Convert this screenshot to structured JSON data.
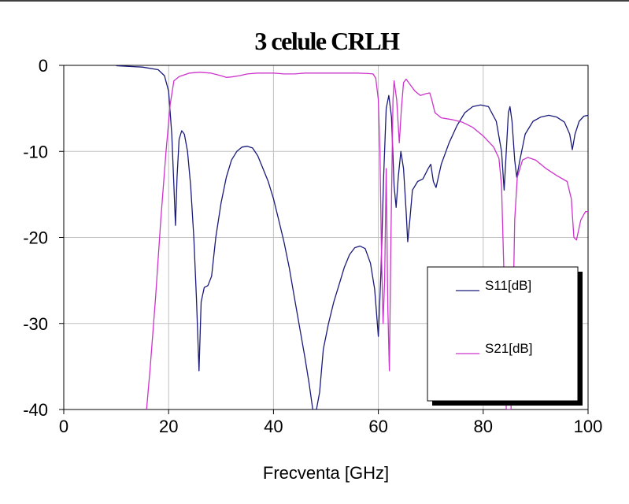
{
  "chart_data": {
    "type": "line",
    "title": "3 celule CRLH",
    "xlabel": "Frecventa [GHz]",
    "ylabel": "",
    "xlim": [
      0,
      100
    ],
    "ylim": [
      -40,
      0
    ],
    "xticks": [
      0,
      20,
      40,
      60,
      80,
      100
    ],
    "yticks": [
      0,
      -10,
      -20,
      -30,
      -40
    ],
    "grid": true,
    "legend_position": "bottom-right",
    "series": [
      {
        "name": "S11[dB]",
        "color": "#1a1a7a",
        "points": [
          [
            10,
            -0.05
          ],
          [
            15,
            -0.2
          ],
          [
            18,
            -0.5
          ],
          [
            19.2,
            -1.2
          ],
          [
            20,
            -3
          ],
          [
            20.6,
            -8
          ],
          [
            21,
            -14
          ],
          [
            21.3,
            -18.6
          ],
          [
            21.6,
            -13
          ],
          [
            22,
            -8.6
          ],
          [
            22.5,
            -7.6
          ],
          [
            23,
            -8
          ],
          [
            23.6,
            -10
          ],
          [
            24.2,
            -14
          ],
          [
            24.8,
            -20
          ],
          [
            25.3,
            -27
          ],
          [
            25.8,
            -35.5
          ],
          [
            26.2,
            -27.5
          ],
          [
            26.8,
            -25.8
          ],
          [
            27.5,
            -25.6
          ],
          [
            28.2,
            -24.5
          ],
          [
            29,
            -20
          ],
          [
            30,
            -16
          ],
          [
            31,
            -13
          ],
          [
            32,
            -11
          ],
          [
            33,
            -10
          ],
          [
            34,
            -9.5
          ],
          [
            35,
            -9.4
          ],
          [
            36,
            -9.6
          ],
          [
            37,
            -10.5
          ],
          [
            38,
            -12
          ],
          [
            39,
            -13.5
          ],
          [
            40,
            -15.5
          ],
          [
            41,
            -18
          ],
          [
            42,
            -20.5
          ],
          [
            43,
            -23.5
          ],
          [
            44,
            -27
          ],
          [
            45,
            -30.5
          ],
          [
            46,
            -34
          ],
          [
            46.8,
            -37
          ],
          [
            47.5,
            -40
          ],
          [
            48.2,
            -40
          ],
          [
            48.8,
            -38
          ],
          [
            49.5,
            -33
          ],
          [
            50.5,
            -30
          ],
          [
            51.5,
            -27.5
          ],
          [
            52.5,
            -25.5
          ],
          [
            53.5,
            -23.5
          ],
          [
            54.5,
            -22
          ],
          [
            55.5,
            -21.2
          ],
          [
            56.5,
            -21
          ],
          [
            57.5,
            -21.3
          ],
          [
            58.5,
            -23
          ],
          [
            59.3,
            -26
          ],
          [
            60,
            -31.5
          ],
          [
            60.5,
            -24
          ],
          [
            61,
            -13
          ],
          [
            61.5,
            -5
          ],
          [
            62,
            -3.5
          ],
          [
            62.5,
            -6
          ],
          [
            63,
            -14
          ],
          [
            63.4,
            -16.5
          ],
          [
            63.8,
            -13
          ],
          [
            64.3,
            -10
          ],
          [
            64.8,
            -12
          ],
          [
            65.3,
            -17
          ],
          [
            65.6,
            -20.5
          ],
          [
            66,
            -18
          ],
          [
            66.5,
            -14.5
          ],
          [
            67.5,
            -13.5
          ],
          [
            68.5,
            -13.2
          ],
          [
            69.5,
            -12
          ],
          [
            70,
            -11.5
          ],
          [
            70.5,
            -13.5
          ],
          [
            71,
            -14.2
          ],
          [
            72,
            -11.5
          ],
          [
            73.5,
            -9
          ],
          [
            75,
            -7
          ],
          [
            76.5,
            -5.5
          ],
          [
            78,
            -4.8
          ],
          [
            79.5,
            -4.6
          ],
          [
            81,
            -4.8
          ],
          [
            82.5,
            -6.5
          ],
          [
            83.5,
            -10
          ],
          [
            84,
            -14.5
          ],
          [
            84.4,
            -10
          ],
          [
            84.8,
            -5.5
          ],
          [
            85.1,
            -4.8
          ],
          [
            85.5,
            -6.5
          ],
          [
            86,
            -11
          ],
          [
            86.4,
            -13
          ],
          [
            87,
            -11
          ],
          [
            88,
            -8
          ],
          [
            89.5,
            -6.5
          ],
          [
            91,
            -6
          ],
          [
            92.5,
            -5.8
          ],
          [
            94,
            -6
          ],
          [
            95.5,
            -6.6
          ],
          [
            96.5,
            -8
          ],
          [
            97,
            -9.8
          ],
          [
            97.5,
            -8
          ],
          [
            98.3,
            -6.5
          ],
          [
            99.2,
            -5.9
          ],
          [
            100,
            -5.8
          ]
        ]
      },
      {
        "name": "S21[dB]",
        "color": "#cc33cc",
        "points": [
          [
            15.8,
            -40
          ],
          [
            16.5,
            -35
          ],
          [
            17.5,
            -27
          ],
          [
            18.5,
            -18
          ],
          [
            19.5,
            -10
          ],
          [
            20.3,
            -4.5
          ],
          [
            21,
            -1.8
          ],
          [
            22,
            -1.3
          ],
          [
            23,
            -1.1
          ],
          [
            24,
            -0.9
          ],
          [
            26,
            -0.8
          ],
          [
            28,
            -0.9
          ],
          [
            30,
            -1.2
          ],
          [
            31,
            -1.4
          ],
          [
            32,
            -1.35
          ],
          [
            33.5,
            -1.2
          ],
          [
            35,
            -1.0
          ],
          [
            37,
            -0.9
          ],
          [
            40,
            -0.9
          ],
          [
            42,
            -1.0
          ],
          [
            44,
            -1.0
          ],
          [
            46,
            -0.9
          ],
          [
            48,
            -0.9
          ],
          [
            50,
            -0.9
          ],
          [
            52,
            -0.9
          ],
          [
            54,
            -0.9
          ],
          [
            56,
            -0.9
          ],
          [
            58,
            -0.95
          ],
          [
            59,
            -1.0
          ],
          [
            59.5,
            -1.5
          ],
          [
            60,
            -4
          ],
          [
            60.3,
            -10
          ],
          [
            60.6,
            -22
          ],
          [
            60.9,
            -30
          ],
          [
            61.2,
            -25
          ],
          [
            61.5,
            -12
          ],
          [
            61.8,
            -28
          ],
          [
            62.1,
            -35.5
          ],
          [
            62.4,
            -20
          ],
          [
            62.8,
            -4
          ],
          [
            63,
            -1.8
          ],
          [
            63.5,
            -4
          ],
          [
            64,
            -9
          ],
          [
            64.4,
            -5
          ],
          [
            64.8,
            -2
          ],
          [
            65.3,
            -1.6
          ],
          [
            66,
            -2.2
          ],
          [
            67,
            -3
          ],
          [
            68,
            -3.5
          ],
          [
            69,
            -3.3
          ],
          [
            69.8,
            -3.2
          ],
          [
            70.2,
            -4
          ],
          [
            70.8,
            -5.5
          ],
          [
            72,
            -6.1
          ],
          [
            74,
            -6.3
          ],
          [
            76,
            -6.6
          ],
          [
            78,
            -7.2
          ],
          [
            80,
            -8.2
          ],
          [
            82,
            -9.5
          ],
          [
            83,
            -10.8
          ],
          [
            83.5,
            -14
          ],
          [
            84,
            -25
          ],
          [
            84.4,
            -40
          ],
          [
            85.3,
            -40
          ],
          [
            85.6,
            -32
          ],
          [
            86,
            -18
          ],
          [
            86.5,
            -13
          ],
          [
            87.5,
            -11
          ],
          [
            88.5,
            -10.7
          ],
          [
            90,
            -11
          ],
          [
            92,
            -12
          ],
          [
            94,
            -12.8
          ],
          [
            96,
            -13.5
          ],
          [
            96.8,
            -15.5
          ],
          [
            97.3,
            -20
          ],
          [
            97.8,
            -20.3
          ],
          [
            98.6,
            -18
          ],
          [
            99.5,
            -17
          ],
          [
            100,
            -17
          ]
        ]
      }
    ]
  }
}
